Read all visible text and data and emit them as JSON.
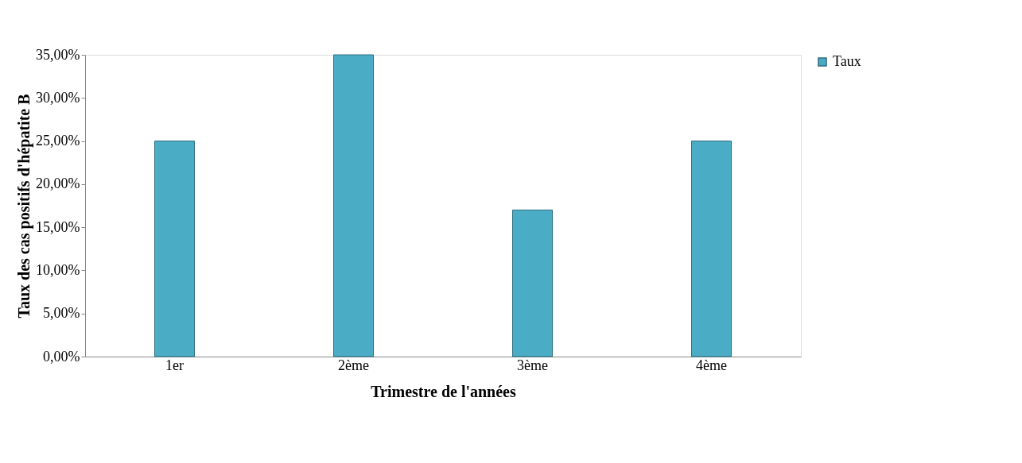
{
  "chart_data": {
    "type": "bar",
    "xlabel": "Trimestre de l'années",
    "ylabel": "Taux des cas positifs d'hépatite B",
    "categories": [
      "1er",
      "2ème",
      "3ème",
      "4ème"
    ],
    "series": [
      {
        "name": "Taux",
        "color": "#4bacc6",
        "values": [
          25,
          35,
          17,
          25
        ]
      }
    ],
    "ylim": [
      0,
      35
    ],
    "yticks": [
      {
        "value": 0,
        "label": "0,00%"
      },
      {
        "value": 5,
        "label": "5,00%"
      },
      {
        "value": 10,
        "label": "10,00%"
      },
      {
        "value": 15,
        "label": "15,00%"
      },
      {
        "value": 20,
        "label": "20,00%"
      },
      {
        "value": 25,
        "label": "25,00%"
      },
      {
        "value": 30,
        "label": "30,00%"
      },
      {
        "value": 35,
        "label": "35,00%"
      }
    ],
    "grid": false,
    "legend": "right"
  }
}
